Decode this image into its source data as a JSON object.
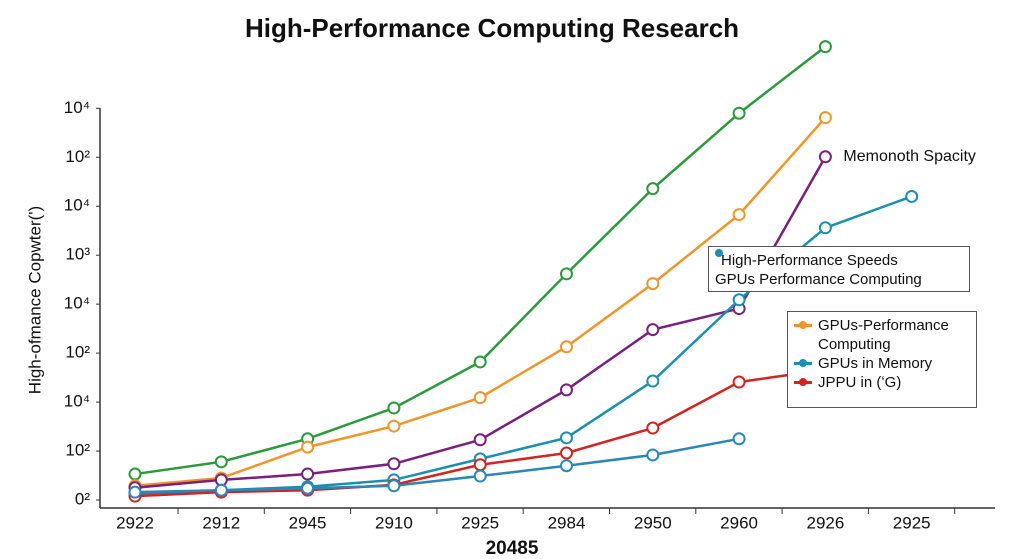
{
  "chart_data": {
    "type": "line",
    "title": "High-Performance Computing Research",
    "x_label": "20485",
    "y_label": "High-ofmance Copwter(ʹ)",
    "categories": [
      "2922",
      "2912",
      "2945",
      "2910",
      "2925",
      "2984",
      "2950",
      "2960",
      "2926",
      "2925"
    ],
    "ylim": [
      0,
      9.6
    ],
    "yticks": [
      {
        "value": 0,
        "label": "0²"
      },
      {
        "value": 1,
        "label": "10²"
      },
      {
        "value": 2,
        "label": "10⁴"
      },
      {
        "value": 3,
        "label": "10²"
      },
      {
        "value": 4,
        "label": "10⁴"
      },
      {
        "value": 5,
        "label": "10³"
      },
      {
        "value": 6,
        "label": "10⁴"
      },
      {
        "value": 7,
        "label": "10²"
      },
      {
        "value": 8,
        "label": "10⁴"
      }
    ],
    "annotation": [
      "High-Performance Speeds",
      "GPUs Performance Computing"
    ],
    "series": [
      {
        "color": "#2a9a3a",
        "values": [
          0.53,
          0.78,
          1.25,
          1.88,
          2.82,
          4.62,
          6.36,
          7.9,
          9.26,
          null
        ]
      },
      {
        "name": "GPUs-Performance Computing",
        "color": "#f0952a",
        "values": [
          0.29,
          0.45,
          1.08,
          1.51,
          2.09,
          3.13,
          4.42,
          5.83,
          7.81,
          null
        ]
      },
      {
        "name": "Memonoth Spacity",
        "color": "#7b1f7e",
        "values": [
          0.25,
          0.41,
          0.53,
          0.74,
          1.23,
          2.25,
          3.48,
          3.91,
          7.01,
          null
        ]
      },
      {
        "name": "GPUs in Memory",
        "color": "#1a8fb0",
        "values": [
          0.12,
          0.2,
          0.27,
          0.41,
          0.84,
          1.27,
          2.43,
          4.09,
          5.56,
          6.2
        ]
      },
      {
        "name": "JPPU in (ʻG)",
        "color": "#d42323",
        "values": [
          0.08,
          0.16,
          0.2,
          0.31,
          0.72,
          0.96,
          1.47,
          2.41,
          2.66,
          null
        ]
      },
      {
        "color": "#2a87b8",
        "values": [
          0.16,
          0.2,
          0.24,
          0.29,
          0.49,
          0.7,
          0.92,
          1.25,
          null,
          null
        ]
      }
    ]
  }
}
